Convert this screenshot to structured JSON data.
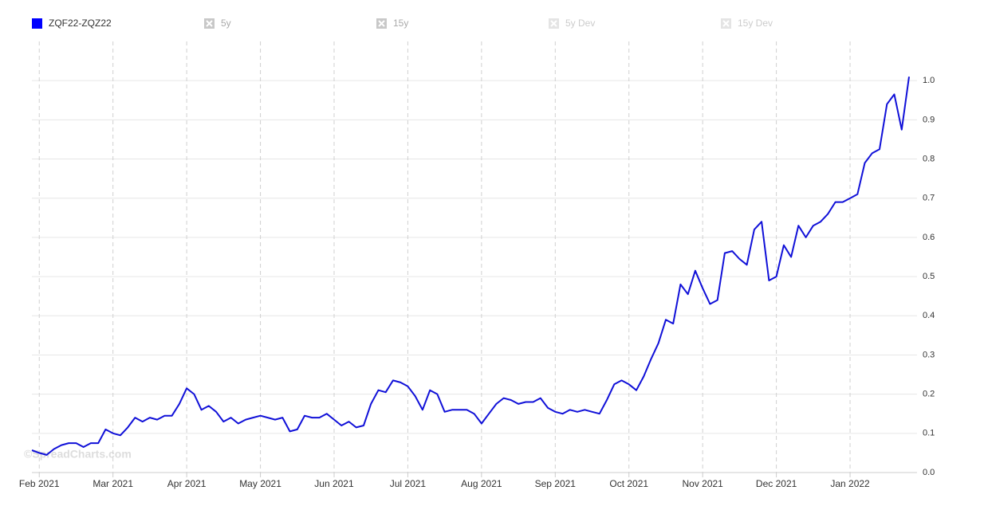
{
  "chart_data": {
    "type": "line",
    "series": [
      {
        "name": "ZQF22-ZQZ22",
        "color": "#1010d8",
        "values": [
          0.057,
          0.05,
          0.045,
          0.06,
          0.07,
          0.075,
          0.075,
          0.065,
          0.075,
          0.075,
          0.11,
          0.1,
          0.095,
          0.115,
          0.14,
          0.13,
          0.14,
          0.135,
          0.145,
          0.145,
          0.175,
          0.215,
          0.2,
          0.16,
          0.17,
          0.155,
          0.13,
          0.14,
          0.125,
          0.135,
          0.14,
          0.145,
          0.14,
          0.135,
          0.14,
          0.105,
          0.11,
          0.145,
          0.14,
          0.14,
          0.15,
          0.135,
          0.12,
          0.13,
          0.115,
          0.12,
          0.175,
          0.21,
          0.205,
          0.235,
          0.23,
          0.22,
          0.195,
          0.16,
          0.21,
          0.2,
          0.155,
          0.16,
          0.16,
          0.16,
          0.15,
          0.125,
          0.15,
          0.175,
          0.19,
          0.185,
          0.175,
          0.18,
          0.18,
          0.19,
          0.165,
          0.155,
          0.15,
          0.16,
          0.155,
          0.16,
          0.155,
          0.15,
          0.185,
          0.225,
          0.235,
          0.225,
          0.21,
          0.245,
          0.29,
          0.33,
          0.39,
          0.38,
          0.48,
          0.455,
          0.515,
          0.47,
          0.43,
          0.44,
          0.56,
          0.565,
          0.545,
          0.53,
          0.62,
          0.64,
          0.49,
          0.5,
          0.58,
          0.55,
          0.63,
          0.6,
          0.63,
          0.64,
          0.66,
          0.69,
          0.69,
          0.7,
          0.71,
          0.79,
          0.815,
          0.825,
          0.94,
          0.965,
          0.875,
          1.01
        ]
      }
    ],
    "categories": [
      null,
      "Feb 2021",
      null,
      null,
      null,
      null,
      null,
      null,
      null,
      null,
      null,
      "Mar 2021",
      null,
      null,
      null,
      null,
      null,
      null,
      null,
      null,
      null,
      "Apr 2021",
      null,
      null,
      null,
      null,
      null,
      null,
      null,
      null,
      null,
      "May 2021",
      null,
      null,
      null,
      null,
      null,
      null,
      null,
      null,
      null,
      "Jun 2021",
      null,
      null,
      null,
      null,
      null,
      null,
      null,
      null,
      null,
      "Jul 2021",
      null,
      null,
      null,
      null,
      null,
      null,
      null,
      null,
      null,
      "Aug 2021",
      null,
      null,
      null,
      null,
      null,
      null,
      null,
      null,
      null,
      "Sep 2021",
      null,
      null,
      null,
      null,
      null,
      null,
      null,
      null,
      null,
      "Oct 2021",
      null,
      null,
      null,
      null,
      null,
      null,
      null,
      null,
      null,
      "Nov 2021",
      null,
      null,
      null,
      null,
      null,
      null,
      null,
      null,
      null,
      "Dec 2021",
      null,
      null,
      null,
      null,
      null,
      null,
      null,
      null,
      null,
      "Jan 2022",
      null,
      null,
      null,
      null,
      null,
      null,
      null,
      null
    ],
    "inactive_series": [
      "5y",
      "15y",
      "5y Dev",
      "15y Dev"
    ],
    "watermark": "©SpreadCharts.com",
    "ylim": [
      0,
      1.1
    ],
    "yticks": [
      {
        "value": 0,
        "label": "0.0"
      },
      0.1,
      0.2,
      0.3,
      0.4,
      0.5,
      0.6,
      0.7,
      0.8,
      0.9,
      {
        "value": 1,
        "label": "1.0"
      }
    ],
    "grid": true
  }
}
